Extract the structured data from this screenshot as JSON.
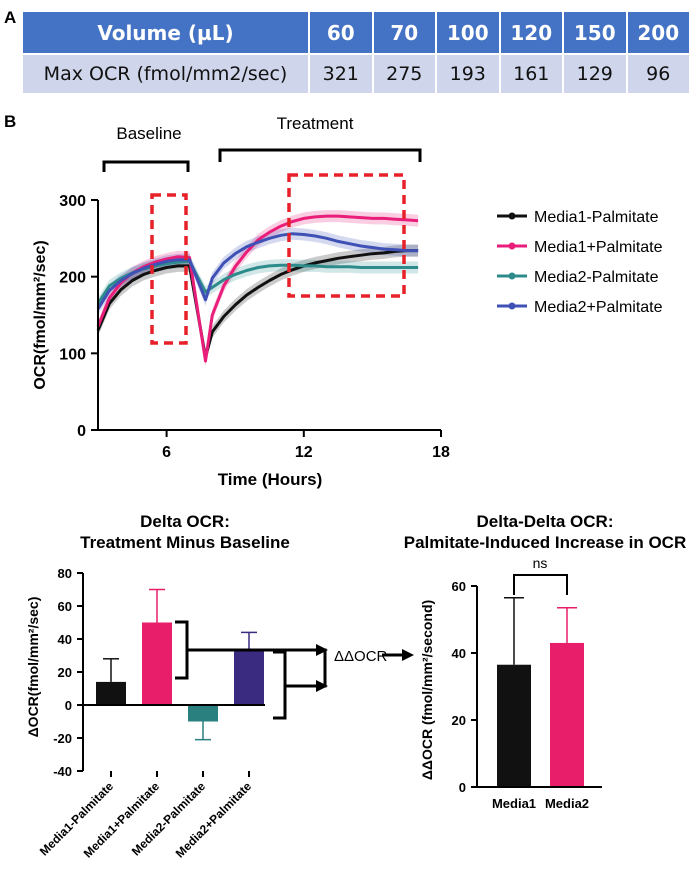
{
  "panel_a": {
    "letter": "A",
    "header": [
      "Volume (µL)",
      "60",
      "70",
      "100",
      "120",
      "150",
      "200"
    ],
    "row": [
      "Max OCR (fmol/mm2/sec)",
      "321",
      "275",
      "193",
      "161",
      "129",
      "96"
    ]
  },
  "panel_b": {
    "letter": "B",
    "baseline_label": "Baseline",
    "treatment_label": "Treatment"
  },
  "chart_data": [
    {
      "type": "line",
      "title": "",
      "xlabel": "Time (Hours)",
      "ylabel": "OCR(fmol/mm²/sec)",
      "xlim": [
        3,
        18
      ],
      "ylim": [
        0,
        300
      ],
      "xticks": [
        "6",
        "12",
        "18"
      ],
      "yticks": [
        "0",
        "100",
        "200",
        "300"
      ],
      "legend_position": "right",
      "series": [
        {
          "name": "Media1-Palmitate",
          "color": "#111111",
          "x": [
            3.0,
            3.5,
            4.0,
            4.5,
            5.0,
            5.5,
            6.0,
            6.5,
            7.0,
            7.7,
            8.0,
            8.5,
            9.0,
            9.5,
            10.0,
            10.5,
            11.0,
            11.5,
            12.0,
            12.5,
            13.0,
            13.5,
            14.0,
            14.5,
            15.0,
            15.5,
            16.0,
            16.5,
            17.0
          ],
          "y": [
            130,
            165,
            183,
            195,
            203,
            208,
            212,
            214,
            214,
            95,
            128,
            148,
            163,
            176,
            186,
            195,
            203,
            209,
            214,
            218,
            221,
            224,
            226,
            228,
            230,
            231,
            233,
            234,
            234
          ]
        },
        {
          "name": "Media1+Palmitate",
          "color": "#e91e7a",
          "x": [
            3.0,
            3.5,
            4.0,
            4.5,
            5.0,
            5.5,
            6.0,
            6.5,
            7.0,
            7.7,
            8.0,
            8.5,
            9.0,
            9.5,
            10.0,
            10.5,
            11.0,
            11.5,
            12.0,
            12.5,
            13.0,
            13.5,
            14.0,
            14.5,
            15.0,
            15.5,
            16.0,
            16.5,
            17.0
          ],
          "y": [
            135,
            172,
            192,
            205,
            213,
            219,
            223,
            226,
            225,
            90,
            150,
            188,
            213,
            232,
            248,
            258,
            266,
            272,
            276,
            278,
            279,
            279,
            278,
            277,
            276,
            276,
            275,
            274,
            273
          ]
        },
        {
          "name": "Media2-Palmitate",
          "color": "#2e8b8b",
          "x": [
            3.0,
            3.5,
            4.0,
            4.5,
            5.0,
            5.5,
            6.0,
            6.5,
            7.0,
            7.7,
            8.0,
            8.5,
            9.0,
            9.5,
            10.0,
            10.5,
            11.0,
            11.5,
            12.0,
            12.5,
            13.0,
            13.5,
            14.0,
            14.5,
            15.0,
            15.5,
            16.0,
            16.5,
            17.0
          ],
          "y": [
            165,
            188,
            198,
            205,
            210,
            214,
            217,
            219,
            220,
            180,
            186,
            196,
            203,
            208,
            212,
            214,
            215,
            215,
            214,
            214,
            213,
            213,
            213,
            212,
            212,
            212,
            212,
            212,
            212
          ]
        },
        {
          "name": "Media2+Palmitate",
          "color": "#3f51b5",
          "x": [
            3.0,
            3.5,
            4.0,
            4.5,
            5.0,
            5.5,
            6.0,
            6.5,
            7.0,
            7.7,
            8.0,
            8.5,
            9.0,
            9.5,
            10.0,
            10.5,
            11.0,
            11.5,
            12.0,
            12.5,
            13.0,
            13.5,
            14.0,
            14.5,
            15.0,
            15.5,
            16.0,
            16.5,
            17.0
          ],
          "y": [
            158,
            182,
            195,
            204,
            211,
            216,
            220,
            222,
            222,
            170,
            198,
            218,
            230,
            239,
            245,
            250,
            254,
            256,
            255,
            253,
            250,
            246,
            243,
            240,
            238,
            236,
            235,
            234,
            234
          ]
        }
      ],
      "annotations": [
        "Baseline",
        "Treatment"
      ]
    },
    {
      "type": "bar",
      "title": "Delta OCR: Treatment Minus Baseline",
      "title_lines": [
        "Delta OCR:",
        "Treatment Minus Baseline"
      ],
      "xlabel": "",
      "ylabel": "ΔOCR(fmol/mm²/sec)",
      "ylim": [
        -40,
        80
      ],
      "yticks": [
        "-40",
        "-20",
        "0",
        "20",
        "40",
        "60",
        "80"
      ],
      "categories": [
        "Media1-Palmitate",
        "Media1+Palmitate",
        "Media2-Palmitate",
        "Media2+Palmitate"
      ],
      "values": [
        14,
        50,
        -10,
        33
      ],
      "errors": [
        14,
        20,
        11,
        11
      ],
      "colors": [
        "#111111",
        "#e91e6b",
        "#2a7f7f",
        "#3a2a80"
      ],
      "annotation": "ΔΔOCR"
    },
    {
      "type": "bar",
      "title": "Delta-Delta OCR: Palmitate-Induced Increase in OCR",
      "title_lines": [
        "Delta-Delta OCR:",
        "Palmitate-Induced Increase in OCR"
      ],
      "xlabel": "",
      "ylabel": "ΔΔOCR (fmol/mm²/second)",
      "ylim": [
        0,
        60
      ],
      "yticks": [
        "0",
        "20",
        "40",
        "60"
      ],
      "categories": [
        "Media1",
        "Media2"
      ],
      "values": [
        36.5,
        43
      ],
      "errors": [
        20,
        10.5
      ],
      "colors": [
        "#111111",
        "#e91e6b"
      ],
      "significance": "ns"
    }
  ]
}
